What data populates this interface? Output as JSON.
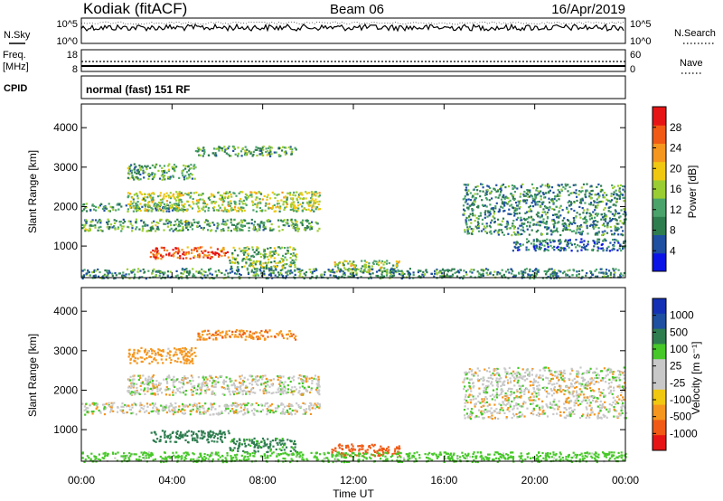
{
  "header": {
    "station": "Kodiak (fitACF)",
    "beam": "Beam 06",
    "date": "16/Apr/2019"
  },
  "strips": {
    "nsky_label": "N.Sky",
    "nsky_ticks": [
      "10^5",
      "10^0"
    ],
    "nsearch_label": "N.Search",
    "nsearch_ticks": [
      "10^5",
      "10^0"
    ],
    "freq_label_1": "Freq.",
    "freq_label_2": "[MHz]",
    "freq_ticks": [
      "18",
      "8"
    ],
    "nave_label": "Nave",
    "nave_ticks": [
      "60",
      "0"
    ],
    "cpid_label": "CPID",
    "cpid_text": "normal (fast) 151 RF"
  },
  "colors": {
    "power_scale": [
      "#0a14e6",
      "#1e4fa0",
      "#2e7d4f",
      "#4aa36b",
      "#9acd32",
      "#f0c810",
      "#f5961e",
      "#f05a14",
      "#e61414"
    ],
    "velocity_scale": [
      "#e61414",
      "#f05a14",
      "#f5961e",
      "#f0c810",
      "#c8c8c8",
      "#c8c8c8",
      "#46c828",
      "#2e7d4f",
      "#1e4fa0",
      "#1430b4"
    ]
  },
  "chart_data": [
    {
      "type": "heatmap",
      "title": "Power",
      "xlabel": "Time UT",
      "ylabel": "Slant Range [km]",
      "x_ticks": [
        "00:00",
        "04:00",
        "08:00",
        "12:00",
        "16:00",
        "20:00",
        "00:00"
      ],
      "y_ticks": [
        "1000",
        "2000",
        "3000",
        "4000"
      ],
      "x_range_hours": [
        0,
        24
      ],
      "y_range_km": [
        200,
        4600
      ],
      "colorbar_label": "Power [dB]",
      "colorbar_ticks": [
        "28",
        "24",
        "20",
        "16",
        "12",
        "8",
        "4"
      ],
      "colorbar_range": [
        0,
        32
      ],
      "echo_bands": [
        {
          "t0": 0.0,
          "t1": 10.5,
          "r0": 1400,
          "r1": 1700,
          "level": 12
        },
        {
          "t0": 0.0,
          "t1": 4.5,
          "r0": 1900,
          "r1": 2100,
          "level": 10
        },
        {
          "t0": 2.0,
          "t1": 10.5,
          "r0": 1900,
          "r1": 2400,
          "level": 16
        },
        {
          "t0": 2.0,
          "t1": 5.0,
          "r0": 2700,
          "r1": 3100,
          "level": 12
        },
        {
          "t0": 5.0,
          "t1": 9.5,
          "r0": 3300,
          "r1": 3550,
          "level": 12
        },
        {
          "t0": 3.0,
          "t1": 6.5,
          "r0": 700,
          "r1": 1000,
          "level": 27
        },
        {
          "t0": 6.5,
          "t1": 9.5,
          "r0": 450,
          "r1": 1000,
          "level": 14
        },
        {
          "t0": 11.0,
          "t1": 14.0,
          "r0": 350,
          "r1": 650,
          "level": 16
        },
        {
          "t0": 16.8,
          "t1": 24.0,
          "r0": 1300,
          "r1": 2600,
          "level": 10
        },
        {
          "t0": 19.0,
          "t1": 24.0,
          "r0": 900,
          "r1": 1200,
          "level": 8
        },
        {
          "t0": 0.0,
          "t1": 24.0,
          "r0": 200,
          "r1": 450,
          "level": 10
        }
      ]
    },
    {
      "type": "heatmap",
      "title": "Velocity",
      "xlabel": "Time UT",
      "ylabel": "Slant Range [km]",
      "x_ticks": [
        "00:00",
        "04:00",
        "08:00",
        "12:00",
        "16:00",
        "20:00",
        "00:00"
      ],
      "y_ticks": [
        "1000",
        "2000",
        "3000",
        "4000"
      ],
      "x_range_hours": [
        0,
        24
      ],
      "y_range_km": [
        200,
        4600
      ],
      "colorbar_label": "Velocity [m s⁻¹]",
      "colorbar_ticks": [
        "1000",
        "500",
        "100",
        "25",
        "-25",
        "-100",
        "-500",
        "-1000"
      ],
      "echo_bands": [
        {
          "t0": 0.0,
          "t1": 10.5,
          "r0": 1400,
          "r1": 1700,
          "level": 0
        },
        {
          "t0": 2.0,
          "t1": 10.5,
          "r0": 1900,
          "r1": 2400,
          "level": 0
        },
        {
          "t0": 2.0,
          "t1": 5.0,
          "r0": 2700,
          "r1": 3100,
          "level": -60
        },
        {
          "t0": 5.0,
          "t1": 9.5,
          "r0": 3300,
          "r1": 3550,
          "level": -80
        },
        {
          "t0": 3.0,
          "t1": 6.5,
          "r0": 700,
          "r1": 1000,
          "level": 150
        },
        {
          "t0": 6.5,
          "t1": 9.5,
          "r0": 450,
          "r1": 800,
          "level": 120
        },
        {
          "t0": 11.0,
          "t1": 14.0,
          "r0": 350,
          "r1": 650,
          "level": -150
        },
        {
          "t0": 16.8,
          "t1": 24.0,
          "r0": 1300,
          "r1": 2600,
          "level": 0
        },
        {
          "t0": 0.0,
          "t1": 24.0,
          "r0": 200,
          "r1": 450,
          "level": 60
        }
      ]
    }
  ]
}
